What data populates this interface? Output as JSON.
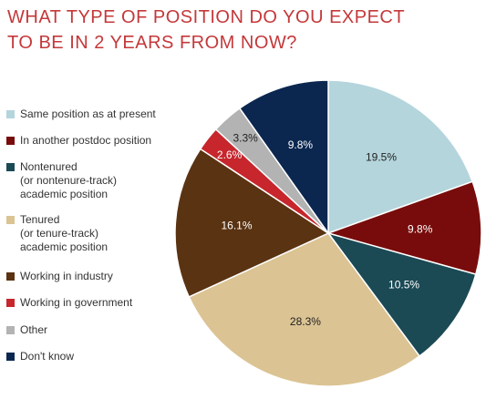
{
  "chart_data": {
    "type": "pie",
    "title": [
      "WHAT TYPE OF POSITION DO YOU EXPECT",
      "TO BE IN 2 YEARS FROM NOW?"
    ],
    "categories": [
      "Same position as at present",
      "In another postdoc position",
      "Nontenured\n(or nontenure-track)\nacademic position",
      "Tenured\n(or tenure-track)\nacademic position",
      "Working in industry",
      "Working in government",
      "Other",
      "Don't know"
    ],
    "values": [
      19.5,
      9.8,
      10.5,
      28.3,
      16.1,
      2.6,
      3.3,
      9.8
    ],
    "value_labels": [
      "19.5%",
      "9.8%",
      "10.5%",
      "28.3%",
      "16.1%",
      "2.6%",
      "3.3%",
      "9.8%"
    ],
    "colors": [
      "#b4d5dc",
      "#780c0c",
      "#1b4a55",
      "#dbc393",
      "#5a3312",
      "#c6262c",
      "#b3b3b3",
      "#0b2750"
    ],
    "legend": "left"
  }
}
